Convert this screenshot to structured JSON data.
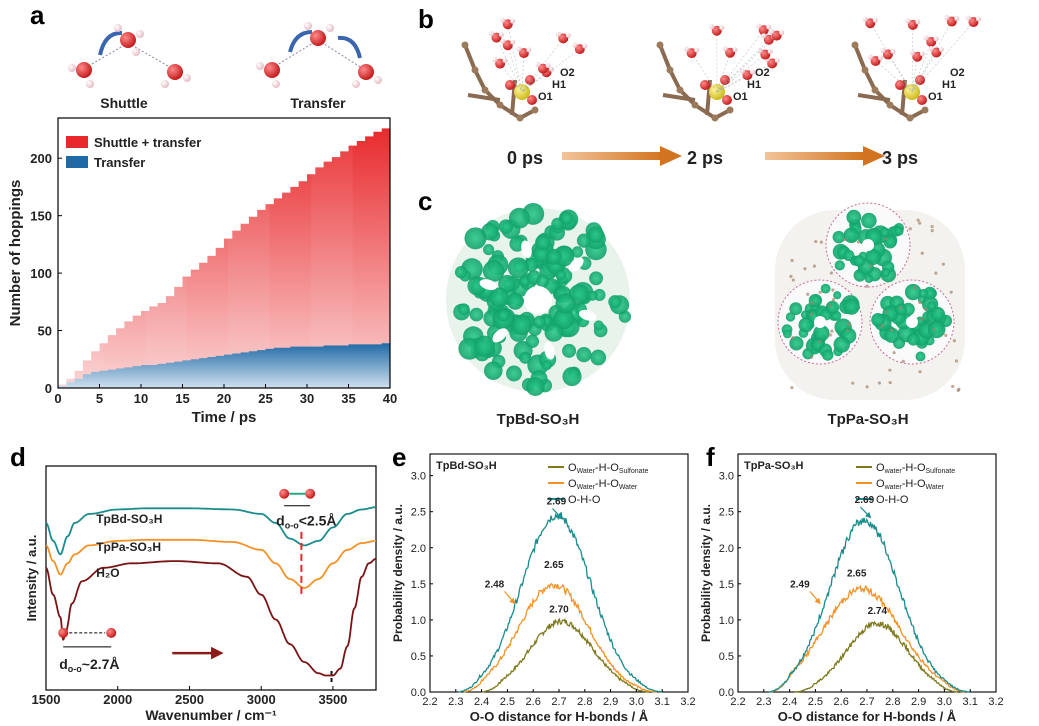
{
  "panel_labels": [
    "a",
    "b",
    "c",
    "d",
    "e",
    "f"
  ],
  "panel_a_top": {
    "shuttle_label": "Shuttle",
    "transfer_label": "Transfer"
  },
  "panel_b": {
    "times": [
      "0 ps",
      "2 ps",
      "3 ps"
    ],
    "atoms": [
      "O1",
      "H1",
      "O2"
    ]
  },
  "panel_c": {
    "left_label": "TpBd-SO₃H",
    "right_label": "TpPa-SO₃H"
  },
  "panel_d": {
    "spectra": [
      "TpBd-SO₃H",
      "TpPa-SO₃H",
      "H₂O"
    ],
    "annot_short": "d",
    "annot_short_sub": "o-o",
    "annot_short_val": "<2.5Å",
    "annot_long": "d",
    "annot_long_sub": "o-o",
    "annot_long_val": "~2.7Å"
  },
  "colors": {
    "red": "#e8282b",
    "blue": "#1f6aa5",
    "teal": "#1a8c8c",
    "orange": "#f39227",
    "olive": "#7f7a1e",
    "darkred": "#7a1414",
    "molecule_green": "#1fb87a"
  },
  "chart_data": [
    {
      "id": "a",
      "type": "area",
      "xlabel": "Time / ps",
      "ylabel": "Number of hoppings",
      "xlim": [
        0,
        40
      ],
      "ylim": [
        0,
        235
      ],
      "xticks": [
        0,
        5,
        10,
        15,
        20,
        25,
        30,
        35,
        40
      ],
      "yticks": [
        0,
        50,
        100,
        150,
        200
      ],
      "legend_position": "top-left",
      "series": [
        {
          "name": "Shuttle + transfer",
          "x": [
            0,
            1,
            2,
            3,
            4,
            5,
            6,
            7,
            8,
            9,
            10,
            11,
            12,
            13,
            14,
            15,
            16,
            17,
            18,
            19,
            20,
            21,
            22,
            23,
            24,
            25,
            26,
            27,
            28,
            29,
            30,
            31,
            32,
            33,
            34,
            35,
            36,
            37,
            38,
            39,
            40
          ],
          "y": [
            3,
            8,
            15,
            24,
            32,
            39,
            46,
            52,
            58,
            63,
            67,
            71,
            74,
            80,
            88,
            97,
            103,
            109,
            115,
            122,
            130,
            137,
            143,
            149,
            155,
            160,
            165,
            170,
            175,
            180,
            186,
            192,
            197,
            201,
            206,
            211,
            215,
            219,
            223,
            226,
            229
          ]
        },
        {
          "name": "Transfer",
          "x": [
            0,
            1,
            2,
            3,
            4,
            5,
            6,
            7,
            8,
            9,
            10,
            11,
            12,
            13,
            14,
            15,
            16,
            17,
            18,
            19,
            20,
            21,
            22,
            23,
            24,
            25,
            26,
            27,
            28,
            29,
            30,
            31,
            32,
            33,
            34,
            35,
            36,
            37,
            38,
            39,
            40
          ],
          "y": [
            2,
            5,
            8,
            12,
            14,
            15,
            16,
            17,
            18,
            19,
            20,
            20,
            21,
            22,
            23,
            24,
            25,
            26,
            27,
            28,
            29,
            30,
            31,
            32,
            33,
            34,
            35,
            35,
            36,
            36,
            36,
            36,
            37,
            37,
            37,
            38,
            38,
            38,
            38,
            39,
            39
          ]
        }
      ]
    },
    {
      "id": "d",
      "type": "line",
      "xlabel": "Wavenumber / cm⁻¹",
      "ylabel": "Intensity / a.u.",
      "xlim": [
        1500,
        3800
      ],
      "xticks": [
        1500,
        2000,
        2500,
        3000,
        3500
      ],
      "series": [
        {
          "name": "TpBd-SO₃H",
          "x": [
            1500,
            1550,
            1600,
            1650,
            1700,
            1800,
            2000,
            2200,
            2500,
            2800,
            3000,
            3100,
            3200,
            3300,
            3400,
            3500,
            3600,
            3700,
            3800
          ],
          "y": [
            0.7,
            0.62,
            0.56,
            0.64,
            0.7,
            0.74,
            0.76,
            0.765,
            0.765,
            0.76,
            0.74,
            0.7,
            0.63,
            0.6,
            0.62,
            0.68,
            0.74,
            0.76,
            0.77
          ]
        },
        {
          "name": "TpPa-SO₃H",
          "x": [
            1500,
            1550,
            1600,
            1650,
            1700,
            1800,
            2000,
            2200,
            2500,
            2800,
            3000,
            3100,
            3200,
            3300,
            3400,
            3500,
            3600,
            3700,
            3800
          ],
          "y": [
            0.6,
            0.53,
            0.47,
            0.52,
            0.56,
            0.6,
            0.62,
            0.625,
            0.625,
            0.615,
            0.58,
            0.52,
            0.45,
            0.41,
            0.45,
            0.52,
            0.58,
            0.61,
            0.62
          ]
        },
        {
          "name": "H₂O",
          "x": [
            1500,
            1550,
            1600,
            1620,
            1640,
            1680,
            1750,
            1900,
            2100,
            2400,
            2700,
            2900,
            3000,
            3100,
            3200,
            3300,
            3400,
            3450,
            3500,
            3550,
            3600,
            3650,
            3700,
            3750,
            3800
          ],
          "y": [
            0.5,
            0.38,
            0.28,
            0.18,
            0.22,
            0.34,
            0.44,
            0.5,
            0.52,
            0.53,
            0.52,
            0.46,
            0.38,
            0.27,
            0.16,
            0.08,
            0.03,
            0.02,
            0.02,
            0.05,
            0.15,
            0.32,
            0.46,
            0.52,
            0.54
          ]
        }
      ],
      "markers": [
        {
          "x": 3280,
          "label": "short"
        },
        {
          "x": 3490,
          "label": "long"
        }
      ]
    },
    {
      "id": "e",
      "type": "line",
      "title": "TpBd-SO₃H",
      "xlabel": "O-O distance for H-bonds /  Å",
      "ylabel": "Probability density / a.u.",
      "xlim": [
        2.2,
        3.2
      ],
      "ylim": [
        0,
        3.3
      ],
      "xticks": [
        2.2,
        2.3,
        2.4,
        2.5,
        2.6,
        2.7,
        2.8,
        2.9,
        3.0,
        3.1,
        3.2
      ],
      "yticks": [
        0,
        0.5,
        1.0,
        1.5,
        2.0,
        2.5,
        3.0
      ],
      "legend_position": "top-right",
      "series": [
        {
          "name": "O",
          "name_sub": "Water",
          "name_mid": "-H-O",
          "name_sub2": "Sulfonate",
          "peak": 0.98,
          "center": 2.71,
          "width": 0.155,
          "start": 2.4,
          "end": 3.05
        },
        {
          "name": "O",
          "name_sub": "Water",
          "name_mid": "-H-O",
          "name_sub2": "Water",
          "peak": 1.49,
          "center": 2.68,
          "width": 0.17,
          "start": 2.33,
          "end": 3.08
        },
        {
          "name": "O-H-O",
          "peak": 2.45,
          "center": 2.69,
          "width": 0.17,
          "start": 2.31,
          "end": 3.1
        }
      ],
      "annotations": [
        {
          "text": "2.69",
          "x": 2.69,
          "y": 2.6,
          "color": "teal"
        },
        {
          "text": "2.65",
          "x": 2.68,
          "y": 1.72,
          "color": "orange"
        },
        {
          "text": "2.48",
          "x": 2.45,
          "y": 1.45,
          "color": "orange"
        },
        {
          "text": "2.70",
          "x": 2.7,
          "y": 1.1,
          "color": "olive"
        }
      ]
    },
    {
      "id": "f",
      "type": "line",
      "title": "TpPa-SO₃H",
      "xlabel": "O-O distance for H-bonds /  Å",
      "ylabel": "Probability density / a.u.",
      "xlim": [
        2.2,
        3.2
      ],
      "ylim": [
        0,
        3.3
      ],
      "xticks": [
        2.2,
        2.3,
        2.4,
        2.5,
        2.6,
        2.7,
        2.8,
        2.9,
        3.0,
        3.1,
        3.2
      ],
      "yticks": [
        0,
        0.5,
        1.0,
        1.5,
        2.0,
        2.5,
        3.0
      ],
      "legend_position": "top-right",
      "series": [
        {
          "name": "O",
          "name_sub": "water",
          "name_mid": "-H-O",
          "name_sub2": "Sulfonate",
          "peak": 0.95,
          "center": 2.74,
          "width": 0.15,
          "start": 2.42,
          "end": 3.05
        },
        {
          "name": "O",
          "name_sub": "water",
          "name_mid": "-H-O",
          "name_sub2": "Water",
          "peak": 1.43,
          "center": 2.68,
          "width": 0.19,
          "start": 2.33,
          "end": 3.08
        },
        {
          "name": "O-H-O",
          "peak": 2.38,
          "center": 2.69,
          "width": 0.17,
          "start": 2.32,
          "end": 3.1
        }
      ],
      "annotations": [
        {
          "text": "2.69",
          "x": 2.69,
          "y": 2.62,
          "color": "teal"
        },
        {
          "text": "2.65",
          "x": 2.66,
          "y": 1.6,
          "color": "orange"
        },
        {
          "text": "2.49",
          "x": 2.44,
          "y": 1.45,
          "color": "orange"
        },
        {
          "text": "2.74",
          "x": 2.74,
          "y": 1.08,
          "color": "olive"
        }
      ]
    }
  ]
}
